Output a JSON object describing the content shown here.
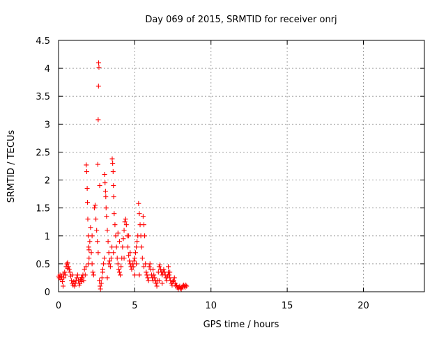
{
  "chart_data": {
    "type": "scatter",
    "title": "Day 069 of 2015, SRMTID for receiver onrj",
    "xlabel": "GPS time / hours",
    "ylabel": "SRMTID / TECUs",
    "xlim": [
      0,
      24
    ],
    "ylim": [
      0,
      4.5
    ],
    "x_ticks": [
      0,
      5,
      10,
      15,
      20
    ],
    "y_ticks": [
      0,
      0.5,
      1,
      1.5,
      2,
      2.5,
      3,
      3.5,
      4,
      4.5
    ],
    "x_tick_labels": [
      "0",
      "5",
      "10",
      "15",
      "20"
    ],
    "y_tick_labels": [
      "0",
      "0.5",
      "1",
      "1.5",
      "2",
      "2.5",
      "3",
      "3.5",
      "4",
      "4.5"
    ],
    "grid": true,
    "marker": "plus",
    "series": [
      {
        "color": "#ff0000",
        "points": [
          [
            0.0,
            0.28
          ],
          [
            0.05,
            0.25
          ],
          [
            0.1,
            0.3
          ],
          [
            0.15,
            0.22
          ],
          [
            0.2,
            0.27
          ],
          [
            0.25,
            0.18
          ],
          [
            0.3,
            0.1
          ],
          [
            0.32,
            0.32
          ],
          [
            0.35,
            0.25
          ],
          [
            0.4,
            0.35
          ],
          [
            0.45,
            0.3
          ],
          [
            0.5,
            0.45
          ],
          [
            0.55,
            0.5
          ],
          [
            0.6,
            0.52
          ],
          [
            0.65,
            0.45
          ],
          [
            0.7,
            0.4
          ],
          [
            0.75,
            0.35
          ],
          [
            0.8,
            0.28
          ],
          [
            0.85,
            0.2
          ],
          [
            0.9,
            0.15
          ],
          [
            0.95,
            0.12
          ],
          [
            1.0,
            0.18
          ],
          [
            1.05,
            0.1
          ],
          [
            1.1,
            0.15
          ],
          [
            1.15,
            0.2
          ],
          [
            1.2,
            0.25
          ],
          [
            1.25,
            0.3
          ],
          [
            1.3,
            0.2
          ],
          [
            1.35,
            0.12
          ],
          [
            1.4,
            0.15
          ],
          [
            1.45,
            0.22
          ],
          [
            1.5,
            0.18
          ],
          [
            1.55,
            0.25
          ],
          [
            1.6,
            0.3
          ],
          [
            1.65,
            0.2
          ],
          [
            1.7,
            0.4
          ],
          [
            1.75,
            0.3
          ],
          [
            1.8,
            0.45
          ],
          [
            1.82,
            2.27
          ],
          [
            1.85,
            2.15
          ],
          [
            1.88,
            1.85
          ],
          [
            1.9,
            1.6
          ],
          [
            1.92,
            1.3
          ],
          [
            1.95,
            1.0
          ],
          [
            1.98,
            0.8
          ],
          [
            2.0,
            0.6
          ],
          [
            2.05,
            0.9
          ],
          [
            2.1,
            1.15
          ],
          [
            2.15,
            0.7
          ],
          [
            2.2,
            0.5
          ],
          [
            2.25,
            0.35
          ],
          [
            2.3,
            0.3
          ],
          [
            2.35,
            1.5
          ],
          [
            2.4,
            1.55
          ],
          [
            2.45,
            1.3
          ],
          [
            2.5,
            1.1
          ],
          [
            2.55,
            0.9
          ],
          [
            2.6,
            0.7
          ],
          [
            2.63,
            4.1
          ],
          [
            2.65,
            4.02
          ],
          [
            2.62,
            3.68
          ],
          [
            2.6,
            3.08
          ],
          [
            2.58,
            2.28
          ],
          [
            2.7,
            1.9
          ],
          [
            2.68,
            0.2
          ],
          [
            2.72,
            0.1
          ],
          [
            2.75,
            0.05
          ],
          [
            2.8,
            0.15
          ],
          [
            2.85,
            0.25
          ],
          [
            2.9,
            0.4
          ],
          [
            2.95,
            0.5
          ],
          [
            3.0,
            0.6
          ],
          [
            3.02,
            2.1
          ],
          [
            3.05,
            1.95
          ],
          [
            3.08,
            1.8
          ],
          [
            3.1,
            1.7
          ],
          [
            3.12,
            1.5
          ],
          [
            3.15,
            1.35
          ],
          [
            3.2,
            1.1
          ],
          [
            3.25,
            0.9
          ],
          [
            3.3,
            0.7
          ],
          [
            3.35,
            0.55
          ],
          [
            3.4,
            0.45
          ],
          [
            3.45,
            0.6
          ],
          [
            3.5,
            0.8
          ],
          [
            3.52,
            2.38
          ],
          [
            3.55,
            2.3
          ],
          [
            3.58,
            2.15
          ],
          [
            3.6,
            1.9
          ],
          [
            3.62,
            1.7
          ],
          [
            3.65,
            1.4
          ],
          [
            3.7,
            1.2
          ],
          [
            3.75,
            1.0
          ],
          [
            3.8,
            0.8
          ],
          [
            3.85,
            0.6
          ],
          [
            3.9,
            0.5
          ],
          [
            3.95,
            0.4
          ],
          [
            4.0,
            0.35
          ],
          [
            4.05,
            0.3
          ],
          [
            4.1,
            0.45
          ],
          [
            4.15,
            0.6
          ],
          [
            4.2,
            0.8
          ],
          [
            4.25,
            0.95
          ],
          [
            4.3,
            1.1
          ],
          [
            4.35,
            1.25
          ],
          [
            4.4,
            1.3
          ],
          [
            4.45,
            1.2
          ],
          [
            4.5,
            1.0
          ],
          [
            4.55,
            0.8
          ],
          [
            4.6,
            0.65
          ],
          [
            4.65,
            0.55
          ],
          [
            4.7,
            0.5
          ],
          [
            4.75,
            0.45
          ],
          [
            4.8,
            0.4
          ],
          [
            4.85,
            0.5
          ],
          [
            4.9,
            0.45
          ],
          [
            4.95,
            0.55
          ],
          [
            5.0,
            0.6
          ],
          [
            5.05,
            0.7
          ],
          [
            5.1,
            0.8
          ],
          [
            5.15,
            0.9
          ],
          [
            5.2,
            1.0
          ],
          [
            5.25,
            1.58
          ],
          [
            5.3,
            1.4
          ],
          [
            5.35,
            1.2
          ],
          [
            5.4,
            1.0
          ],
          [
            5.45,
            0.8
          ],
          [
            5.5,
            0.6
          ],
          [
            5.55,
            1.35
          ],
          [
            5.6,
            1.2
          ],
          [
            5.65,
            1.0
          ],
          [
            5.7,
            0.5
          ],
          [
            5.75,
            0.35
          ],
          [
            5.8,
            0.3
          ],
          [
            5.85,
            0.25
          ],
          [
            5.9,
            0.2
          ],
          [
            5.95,
            0.45
          ],
          [
            6.0,
            0.5
          ],
          [
            6.05,
            0.4
          ],
          [
            6.1,
            0.3
          ],
          [
            6.15,
            0.25
          ],
          [
            6.2,
            0.2
          ],
          [
            6.25,
            0.3
          ],
          [
            6.3,
            0.25
          ],
          [
            6.35,
            0.2
          ],
          [
            6.4,
            0.15
          ],
          [
            6.45,
            0.1
          ],
          [
            6.5,
            0.2
          ],
          [
            6.55,
            0.35
          ],
          [
            6.6,
            0.45
          ],
          [
            6.65,
            0.48
          ],
          [
            6.7,
            0.4
          ],
          [
            6.75,
            0.35
          ],
          [
            6.8,
            0.3
          ],
          [
            6.85,
            0.35
          ],
          [
            6.9,
            0.4
          ],
          [
            6.95,
            0.35
          ],
          [
            7.0,
            0.3
          ],
          [
            7.05,
            0.25
          ],
          [
            7.1,
            0.2
          ],
          [
            7.15,
            0.28
          ],
          [
            7.2,
            0.35
          ],
          [
            7.25,
            0.3
          ],
          [
            7.3,
            0.25
          ],
          [
            7.35,
            0.2
          ],
          [
            7.4,
            0.15
          ],
          [
            7.45,
            0.12
          ],
          [
            7.5,
            0.18
          ],
          [
            7.55,
            0.2
          ],
          [
            7.6,
            0.25
          ],
          [
            7.65,
            0.15
          ],
          [
            7.7,
            0.1
          ],
          [
            7.75,
            0.12
          ],
          [
            7.8,
            0.08
          ],
          [
            7.85,
            0.05
          ],
          [
            7.9,
            0.08
          ],
          [
            7.95,
            0.1
          ],
          [
            8.0,
            0.06
          ],
          [
            8.05,
            0.05
          ],
          [
            8.1,
            0.08
          ],
          [
            8.15,
            0.1
          ],
          [
            8.2,
            0.12
          ],
          [
            8.25,
            0.1
          ],
          [
            8.3,
            0.08
          ],
          [
            8.35,
            0.12
          ],
          [
            8.4,
            0.1
          ],
          [
            0.6,
            0.42
          ],
          [
            0.9,
            0.3
          ],
          [
            1.5,
            0.25
          ],
          [
            2.0,
            0.75
          ],
          [
            2.2,
            1.0
          ],
          [
            3.3,
            0.5
          ],
          [
            3.6,
            0.7
          ],
          [
            4.3,
            0.6
          ],
          [
            4.6,
            1.0
          ],
          [
            5.1,
            0.5
          ],
          [
            5.3,
            0.3
          ],
          [
            5.6,
            0.45
          ],
          [
            6.2,
            0.4
          ],
          [
            6.8,
            0.15
          ],
          [
            7.3,
            0.35
          ],
          [
            4.0,
            0.9
          ],
          [
            3.9,
            1.05
          ],
          [
            2.9,
            0.35
          ],
          [
            1.95,
            0.5
          ],
          [
            5.0,
            0.3
          ],
          [
            6.6,
            0.2
          ],
          [
            7.2,
            0.45
          ],
          [
            4.7,
            0.7
          ],
          [
            3.2,
            0.25
          ]
        ]
      }
    ]
  }
}
